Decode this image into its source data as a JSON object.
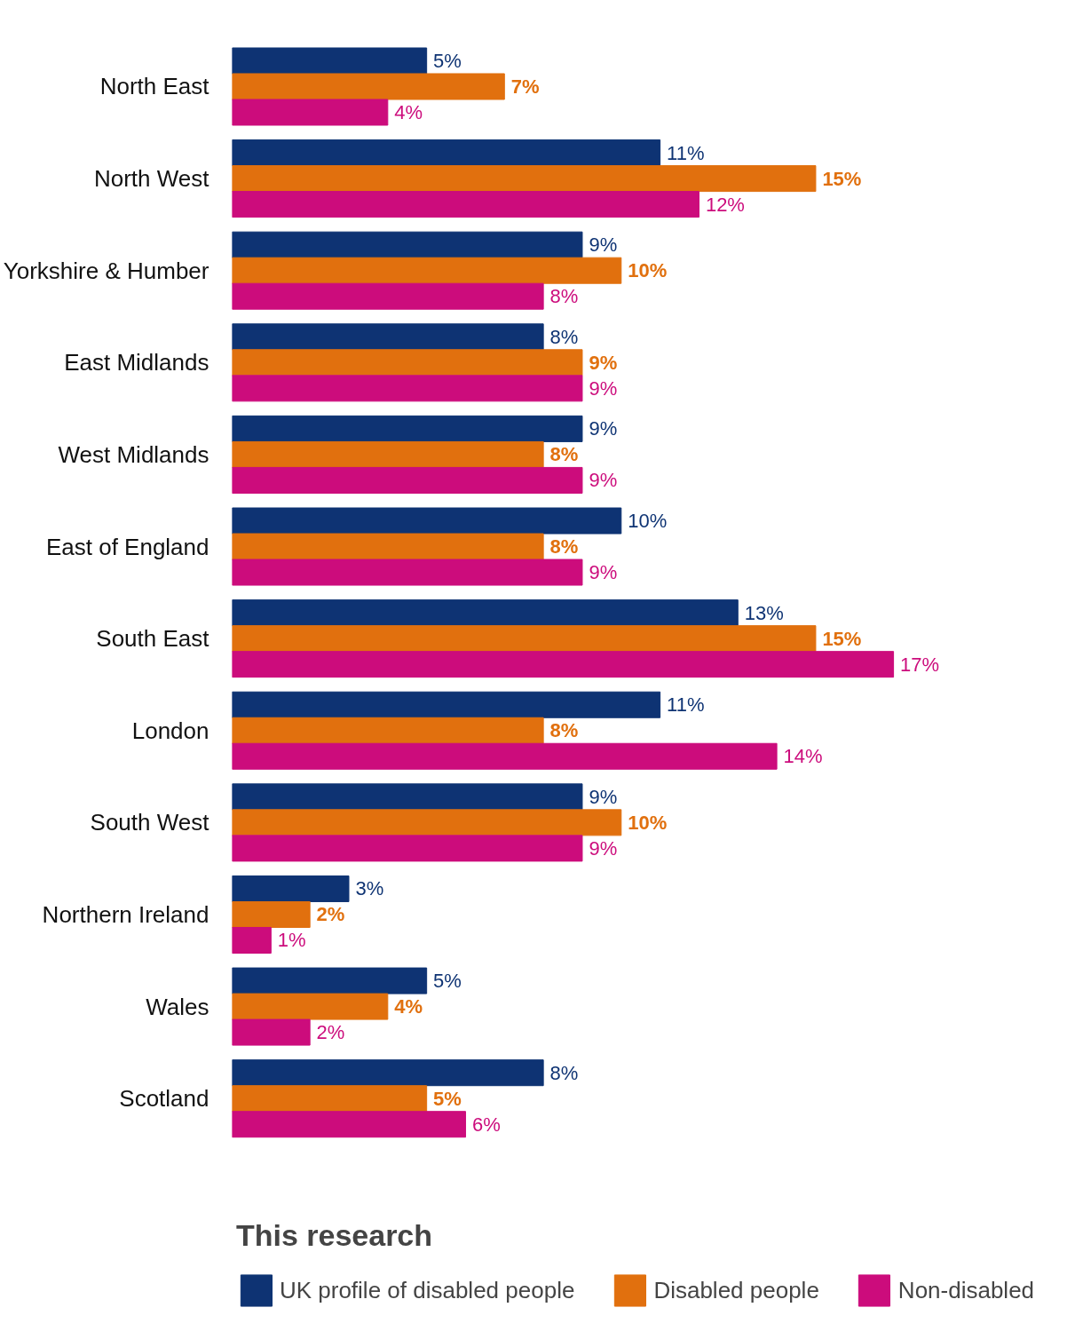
{
  "chart_data": {
    "type": "bar",
    "orientation": "horizontal",
    "legend_title": "This research",
    "legend": "bottom",
    "grid": false,
    "data_labels": true,
    "categories": [
      "North East",
      "North West",
      "Yorkshire & Humber",
      "East Midlands",
      "West Midlands",
      "East of England",
      "South East",
      "London",
      "South West",
      "Northern Ireland",
      "Wales",
      "Scotland"
    ],
    "series": [
      {
        "name": "UK profile of disabled people",
        "color": "#0e3373",
        "values": [
          5,
          11,
          9,
          8,
          9,
          10,
          13,
          11,
          9,
          3,
          5,
          8
        ],
        "value_labels": [
          "5%",
          "11%",
          "9%",
          "8%",
          "9%",
          "10%",
          "13%",
          "11%",
          "9%",
          "3%",
          "5%",
          "8%"
        ]
      },
      {
        "name": "Disabled people",
        "color": "#e1700e",
        "values": [
          7,
          15,
          10,
          9,
          8,
          8,
          15,
          8,
          10,
          2,
          4,
          5
        ],
        "value_labels": [
          "7%",
          "15%",
          "10%",
          "9%",
          "8%",
          "8%",
          "15%",
          "8%",
          "10%",
          "2%",
          "4%",
          "5%"
        ]
      },
      {
        "name": "Non-disabled",
        "color": "#cc0c7c",
        "values": [
          4,
          12,
          8,
          9,
          9,
          9,
          17,
          14,
          9,
          1,
          2,
          6
        ],
        "value_labels": [
          "4%",
          "12%",
          "8%",
          "9%",
          "9%",
          "9%",
          "17%",
          "14%",
          "9%",
          "1%",
          "2%",
          "6%"
        ]
      }
    ]
  }
}
